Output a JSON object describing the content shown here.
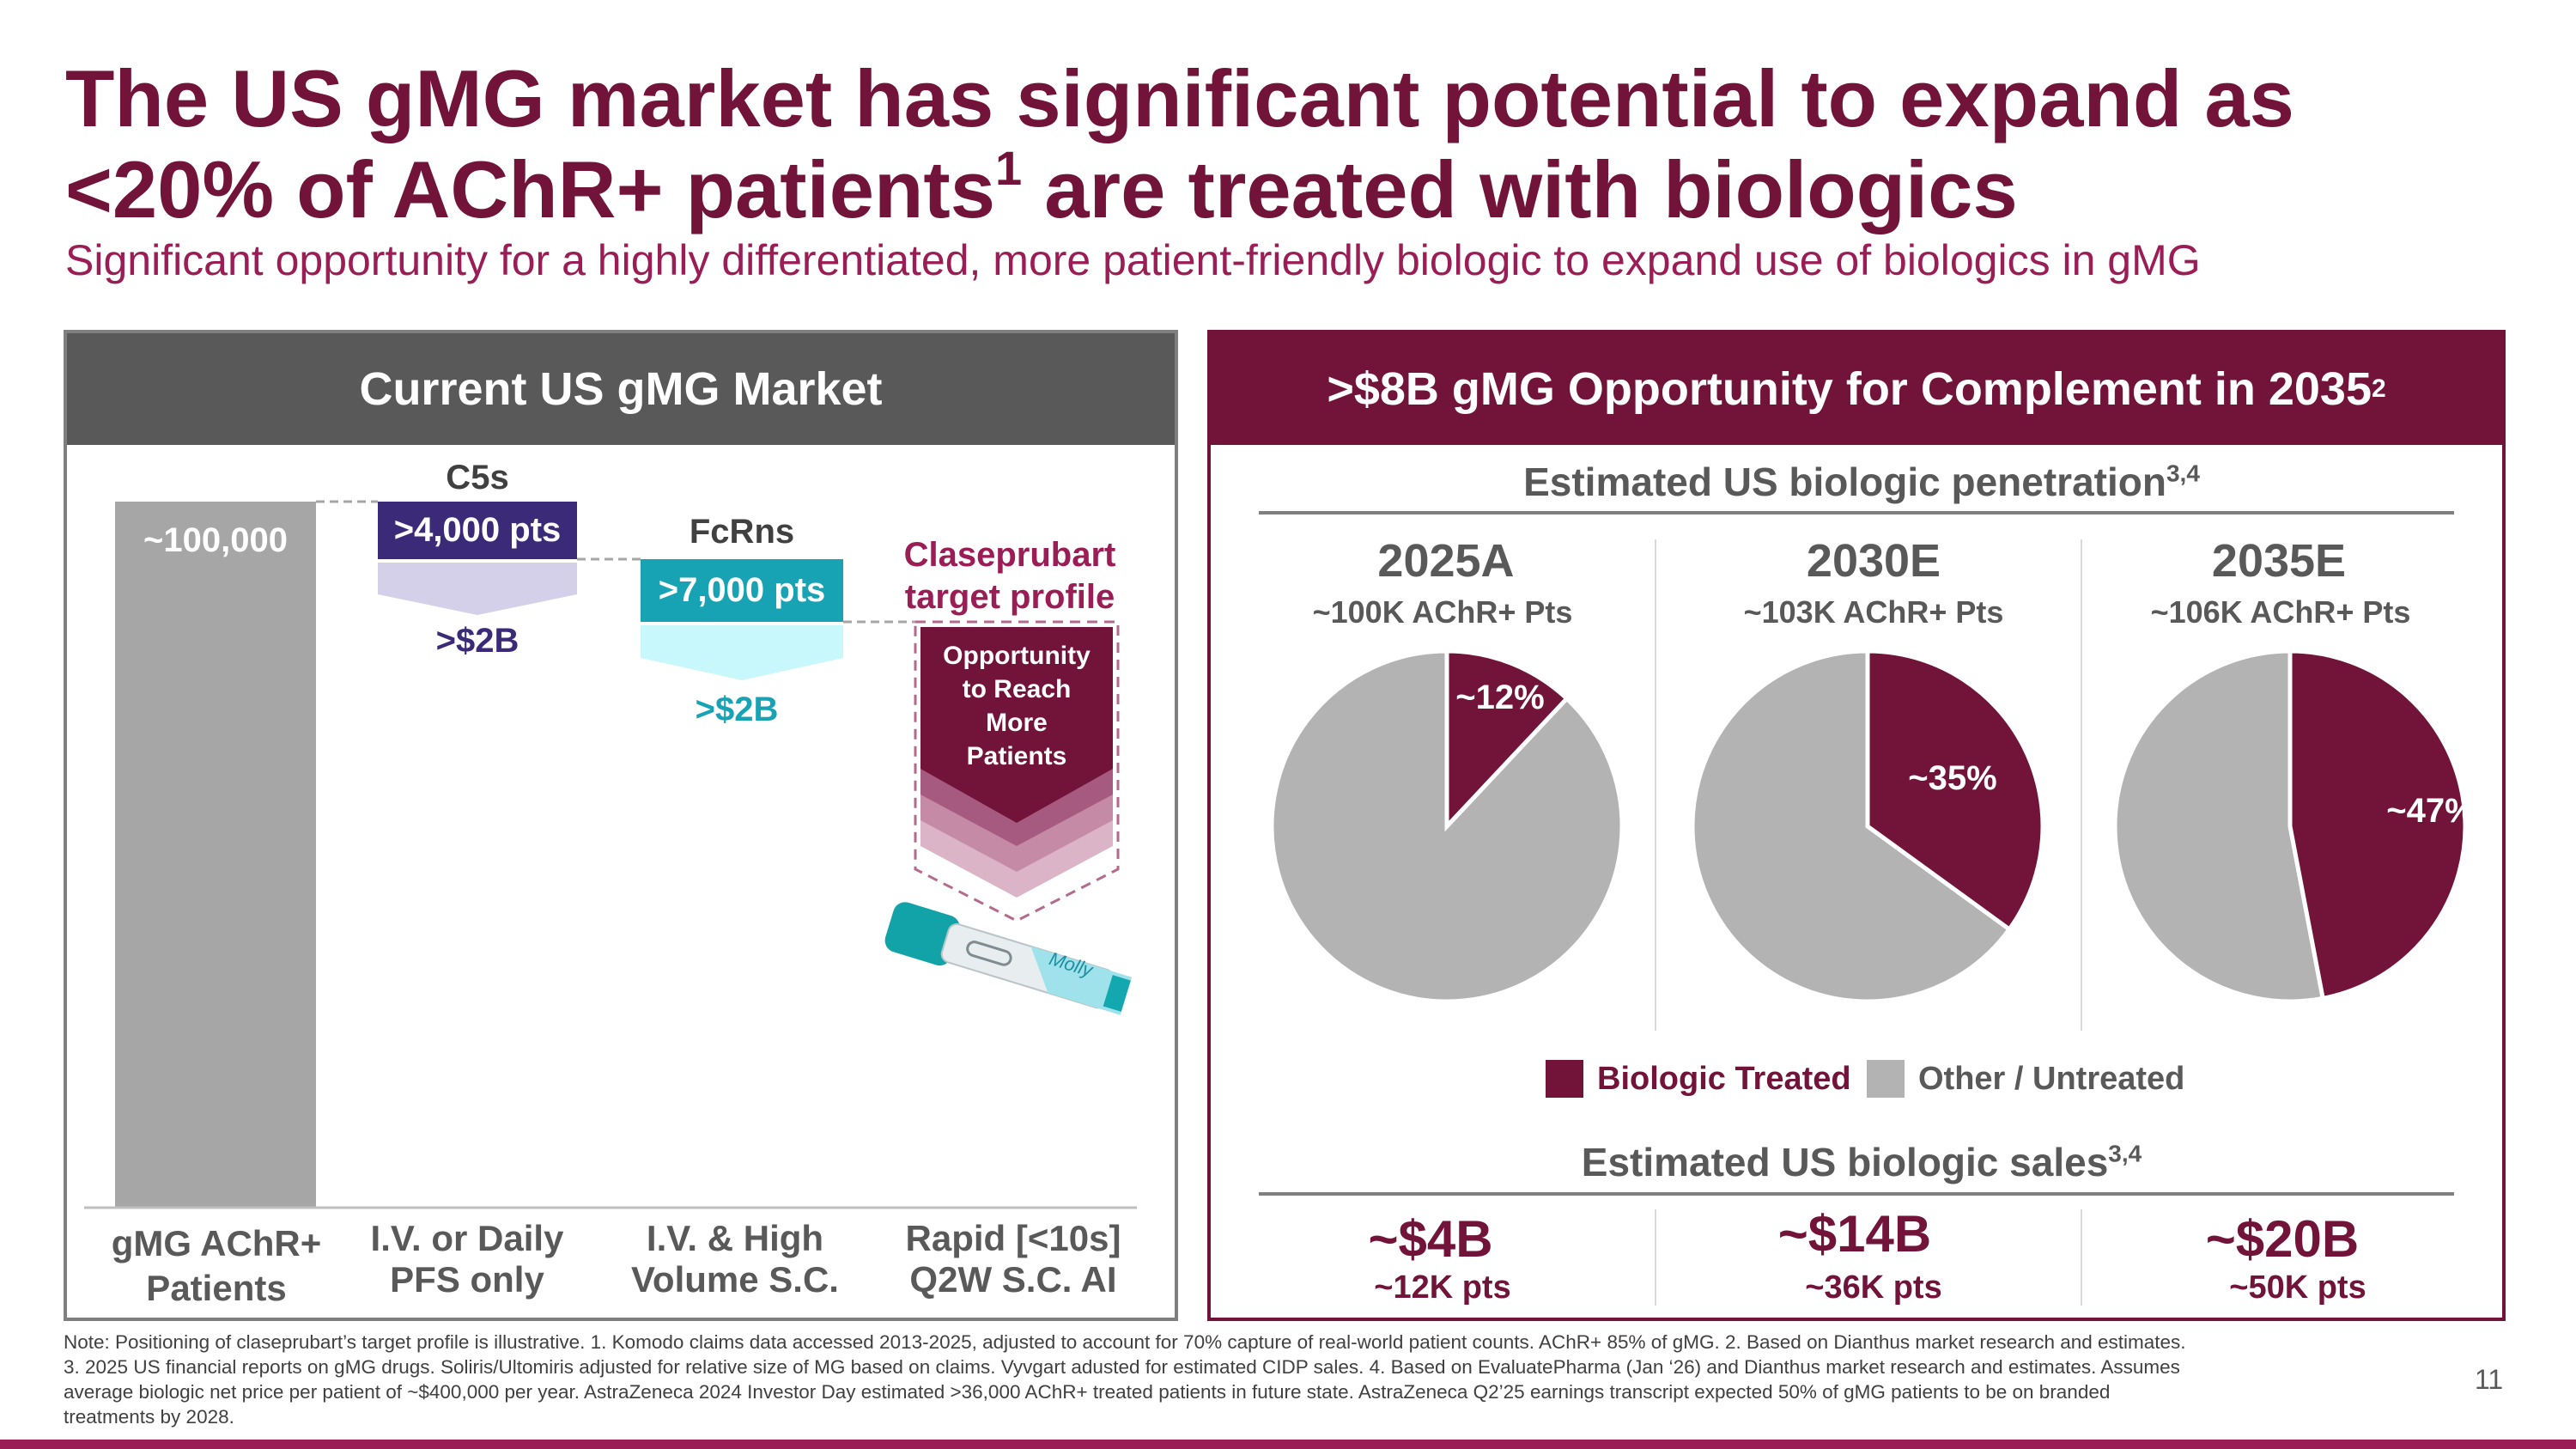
{
  "title": {
    "line1": "The US gMG market has significant potential to expand as",
    "line2_a": "<20% of AChR+ patients",
    "line2_sup": "1",
    "line2_b": " are treated with biologics"
  },
  "subtitle": "Significant opportunity for a highly differentiated, more patient-friendly biologic to expand use of biologics in gMG",
  "left_panel": {
    "header": "Current US gMG Market",
    "total_label": "~100,000",
    "c5_header": "C5s",
    "c5_pts": ">4,000 pts",
    "c5_value": ">$2B",
    "fcrn_header": "FcRns",
    "fcrn_pts": ">7,000 pts",
    "fcrn_value": ">$2B",
    "clase_title_1": "Claseprubart",
    "clase_title_2": "target profile",
    "clase_body": [
      "Opportunity",
      "to Reach",
      "More",
      "Patients"
    ],
    "pen_label": "Molly",
    "categories": [
      [
        "gMG AChR+",
        "Patients"
      ],
      [
        "I.V. or Daily",
        "PFS only"
      ],
      [
        "I.V. & High",
        "Volume S.C."
      ],
      [
        "Rapid [<10s]",
        "Q2W S.C. AI"
      ]
    ],
    "colors": {
      "total": "#a6a6a6",
      "c5": "#3b2a78",
      "c5_light": "#d4d0ea",
      "fcrn": "#17a3b4",
      "fcrn_light": "#c8f7fc"
    }
  },
  "right_panel": {
    "header_main": ">$8B gMG Opportunity for Complement in 2035",
    "header_sup": "2",
    "penetration_title": "Estimated US biologic penetration",
    "penetration_sup": "3,4",
    "sales_title": "Estimated US biologic sales",
    "sales_sup": "3,4",
    "legend": {
      "treated": "Biologic Treated",
      "other": "Other / Untreated"
    },
    "sales": [
      {
        "value": "~$4B",
        "pts": "~12K pts"
      },
      {
        "value": "~$14B",
        "pts": "~36K pts"
      },
      {
        "value": "~$20B",
        "pts": "~50K pts"
      }
    ],
    "colors": {
      "treated": "#721339",
      "other": "#b3b3b3"
    }
  },
  "chart_data": {
    "type": "pie",
    "title": "Estimated US biologic penetration",
    "series": [
      {
        "year": "2025A",
        "population": "~100K AChR+ Pts",
        "treated_pct": 12,
        "label": "~12%"
      },
      {
        "year": "2030E",
        "population": "~103K AChR+ Pts",
        "treated_pct": 35,
        "label": "~35%"
      },
      {
        "year": "2035E",
        "population": "~106K AChR+ Pts",
        "treated_pct": 47,
        "label": "~47%"
      }
    ],
    "legend": [
      "Biologic Treated",
      "Other / Untreated"
    ],
    "legend_position": "bottom"
  },
  "note_lines": [
    "Note: Positioning of claseprubart’s target profile is illustrative. 1. Komodo claims data accessed 2013-2025, adjusted to account for 70% capture of real-world patient counts. AChR+ 85% of gMG. 2. Based on Dianthus market research and estimates.",
    "3. 2025 US financial reports on gMG drugs. Soliris/Ultomiris adjusted for relative size of MG based on claims. Vyvgart adusted for estimated CIDP sales. 4. Based on EvaluatePharma (Jan ‘26) and Dianthus market research and estimates. Assumes",
    "average biologic net price per patient of ~$400,000 per year. AstraZeneca 2024 Investor Day estimated >36,000 AChR+ treated patients in future state. AstraZeneca Q2’25 earnings transcript expected 50% of gMG patients to be on branded",
    "treatments by 2028."
  ],
  "page_number": "11"
}
